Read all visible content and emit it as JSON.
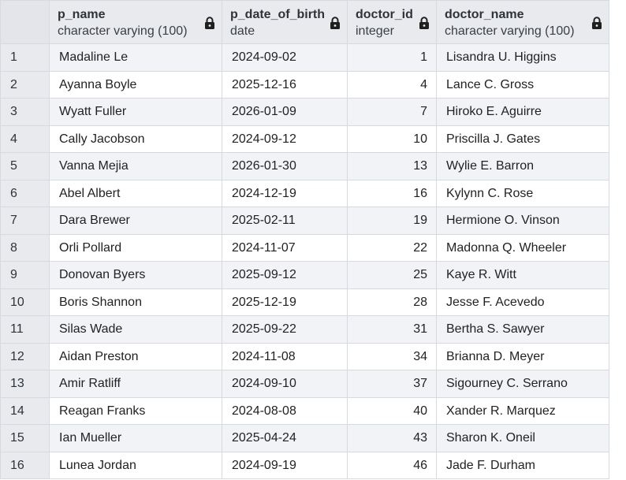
{
  "columns": [
    {
      "name": "p_name",
      "type": "character varying (100)"
    },
    {
      "name": "p_date_of_birth",
      "type": "date"
    },
    {
      "name": "doctor_id",
      "type": "integer"
    },
    {
      "name": "doctor_name",
      "type": "character varying (100)"
    }
  ],
  "lock_icon": "lock-icon",
  "rows": [
    {
      "n": "1",
      "p_name": "Madaline Le",
      "dob": "2024-09-02",
      "doctor_id": "1",
      "doctor_name": "Lisandra U. Higgins"
    },
    {
      "n": "2",
      "p_name": "Ayanna Boyle",
      "dob": "2025-12-16",
      "doctor_id": "4",
      "doctor_name": "Lance C. Gross"
    },
    {
      "n": "3",
      "p_name": "Wyatt Fuller",
      "dob": "2026-01-09",
      "doctor_id": "7",
      "doctor_name": "Hiroko E. Aguirre"
    },
    {
      "n": "4",
      "p_name": "Cally Jacobson",
      "dob": "2024-09-12",
      "doctor_id": "10",
      "doctor_name": "Priscilla J. Gates"
    },
    {
      "n": "5",
      "p_name": "Vanna Mejia",
      "dob": "2026-01-30",
      "doctor_id": "13",
      "doctor_name": "Wylie E. Barron"
    },
    {
      "n": "6",
      "p_name": "Abel Albert",
      "dob": "2024-12-19",
      "doctor_id": "16",
      "doctor_name": "Kylynn C. Rose"
    },
    {
      "n": "7",
      "p_name": "Dara Brewer",
      "dob": "2025-02-11",
      "doctor_id": "19",
      "doctor_name": "Hermione O. Vinson"
    },
    {
      "n": "8",
      "p_name": "Orli Pollard",
      "dob": "2024-11-07",
      "doctor_id": "22",
      "doctor_name": "Madonna Q. Wheeler"
    },
    {
      "n": "9",
      "p_name": "Donovan Byers",
      "dob": "2025-09-12",
      "doctor_id": "25",
      "doctor_name": "Kaye R. Witt"
    },
    {
      "n": "10",
      "p_name": "Boris Shannon",
      "dob": "2025-12-19",
      "doctor_id": "28",
      "doctor_name": "Jesse F. Acevedo"
    },
    {
      "n": "11",
      "p_name": "Silas Wade",
      "dob": "2025-09-22",
      "doctor_id": "31",
      "doctor_name": "Bertha S. Sawyer"
    },
    {
      "n": "12",
      "p_name": "Aidan Preston",
      "dob": "2024-11-08",
      "doctor_id": "34",
      "doctor_name": "Brianna D. Meyer"
    },
    {
      "n": "13",
      "p_name": "Amir Ratliff",
      "dob": "2024-09-10",
      "doctor_id": "37",
      "doctor_name": "Sigourney C. Serrano"
    },
    {
      "n": "14",
      "p_name": "Reagan Franks",
      "dob": "2024-08-08",
      "doctor_id": "40",
      "doctor_name": "Xander R. Marquez"
    },
    {
      "n": "15",
      "p_name": "Ian Mueller",
      "dob": "2025-04-24",
      "doctor_id": "43",
      "doctor_name": "Sharon K. Oneil"
    },
    {
      "n": "16",
      "p_name": "Lunea Jordan",
      "dob": "2024-09-19",
      "doctor_id": "46",
      "doctor_name": "Jade F. Durham"
    }
  ]
}
